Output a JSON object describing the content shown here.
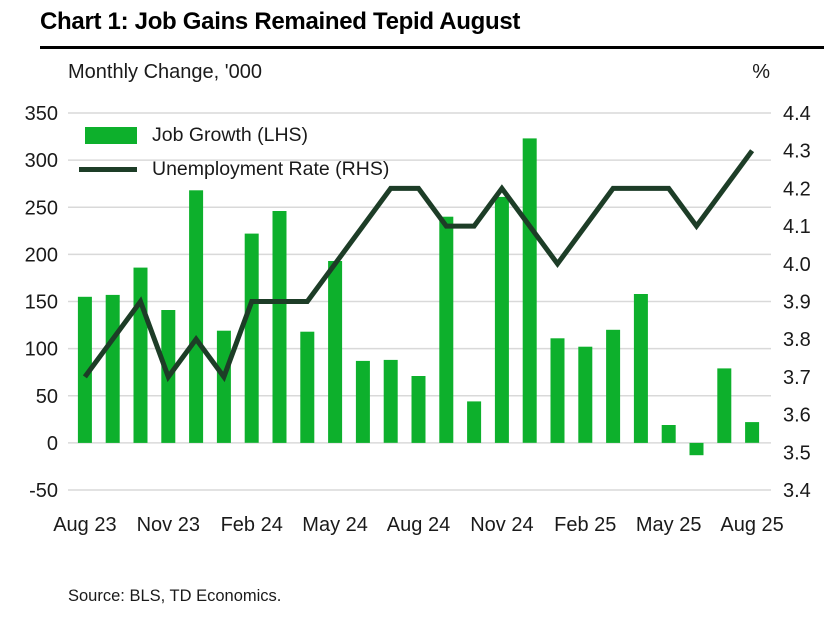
{
  "title": "Chart 1: Job Gains Remained Tepid August",
  "axes": {
    "left_title": "Monthly Change, '000",
    "right_title": "%",
    "left_ticks": [
      "350",
      "300",
      "250",
      "200",
      "150",
      "100",
      "50",
      "0",
      "-50"
    ],
    "right_ticks": [
      "4.4",
      "4.3",
      "4.2",
      "4.1",
      "4.0",
      "3.9",
      "3.8",
      "3.7",
      "3.6",
      "3.5",
      "3.4"
    ],
    "x_ticks": [
      "Aug 23",
      "Nov 23",
      "Feb 24",
      "May 24",
      "Aug 24",
      "Nov 24",
      "Feb 25",
      "May 25",
      "Aug 25"
    ]
  },
  "legend": {
    "bar_label": "Job Growth (LHS)",
    "line_label": "Unemployment Rate (RHS)"
  },
  "source": "Source: BLS, TD Economics.",
  "colors": {
    "bar": "#0db02c",
    "line": "#1d3d27",
    "gridline": "#d9d9d9",
    "text": "#1a1a1a"
  },
  "chart_data": {
    "type": "bar",
    "subtype": "bar+line dual-axis",
    "title": "Chart 1: Job Gains Remained Tepid August",
    "xlabel": "",
    "ylabel_left": "Monthly Change, '000",
    "ylabel_right": "%",
    "categories": [
      "Aug 23",
      "Sep 23",
      "Oct 23",
      "Nov 23",
      "Dec 23",
      "Jan 24",
      "Feb 24",
      "Mar 24",
      "Apr 24",
      "May 24",
      "Jun 24",
      "Jul 24",
      "Aug 24",
      "Sep 24",
      "Oct 24",
      "Nov 24",
      "Dec 24",
      "Jan 25",
      "Feb 25",
      "Mar 25",
      "Apr 25",
      "May 25",
      "Jun 25",
      "Jul 25",
      "Aug 25"
    ],
    "series": [
      {
        "name": "Job Growth (LHS)",
        "type": "bar",
        "axis": "left",
        "values": [
          155,
          157,
          186,
          141,
          268,
          119,
          222,
          246,
          118,
          193,
          87,
          88,
          71,
          240,
          44,
          261,
          323,
          111,
          102,
          120,
          158,
          19,
          -13,
          79,
          22
        ]
      },
      {
        "name": "Unemployment Rate (RHS)",
        "type": "line",
        "axis": "right",
        "values": [
          3.7,
          3.8,
          3.9,
          3.7,
          3.8,
          3.7,
          3.9,
          3.9,
          3.9,
          4.0,
          4.1,
          4.2,
          4.2,
          4.1,
          4.1,
          4.2,
          4.1,
          4.0,
          4.1,
          4.2,
          4.2,
          4.2,
          4.1,
          4.2,
          4.3
        ]
      }
    ],
    "left_axis": {
      "min": -50,
      "max": 350,
      "step": 50
    },
    "right_axis": {
      "min": 3.4,
      "max": 4.4,
      "step": 0.1
    },
    "x_label_every": 3,
    "grid": true,
    "legend_position": "top-left-inside"
  }
}
